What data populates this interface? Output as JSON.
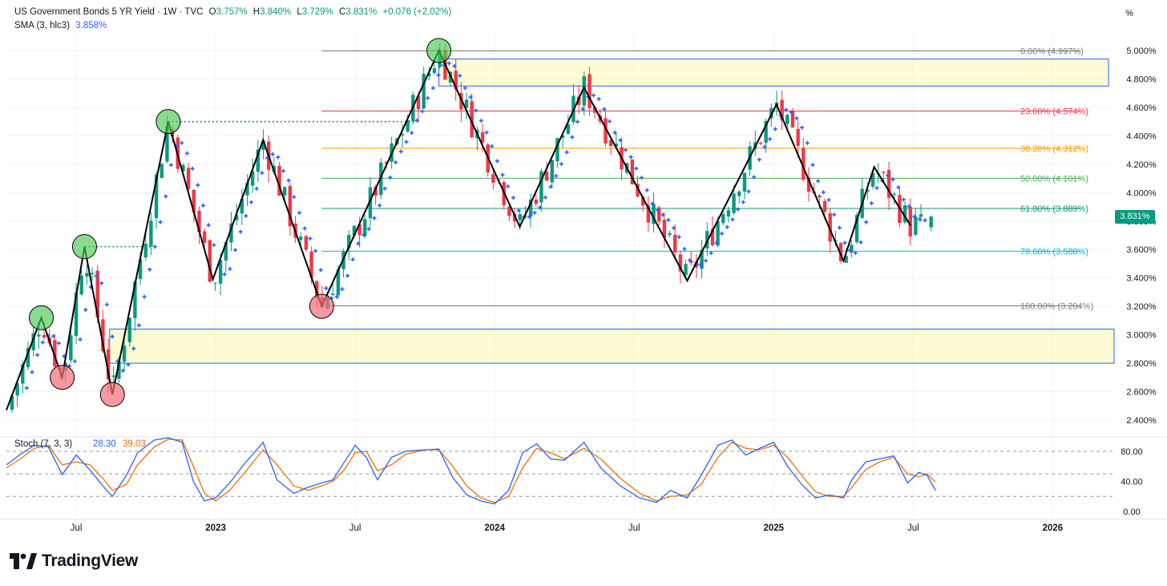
{
  "header": {
    "symbol": "US Government Bonds 5 YR Yield · 1W · TVC",
    "o_label": "O",
    "o_value": "3.757%",
    "h_label": "H",
    "h_value": "3.840%",
    "l_label": "L",
    "l_value": "3.729%",
    "c_label": "C",
    "c_value": "3.831%",
    "change": "+0.076 (+2.02%)",
    "sma_label": "SMA (3, hlc3)",
    "sma_value": "3.858%",
    "axis_unit": "%"
  },
  "last_price": "3.831%",
  "brand": "TradingView",
  "colors": {
    "up": "#089981",
    "down": "#f23645",
    "sma": "#2962ff",
    "stoch_k": "#2962ff",
    "stoch_d": "#ff6d00",
    "fib_label": "#131722"
  },
  "chart_data": {
    "type": "candlestick",
    "title": "US Government Bonds 5 YR Yield · 1W · TVC",
    "ylabel": "%",
    "ylim": [
      2.3,
      5.1
    ],
    "x_domain": [
      2022.25,
      2026.22
    ],
    "y_ticks": [
      "5.000%",
      "4.800%",
      "4.600%",
      "4.400%",
      "4.200%",
      "4.000%",
      "3.800%",
      "3.600%",
      "3.400%",
      "3.200%",
      "3.000%",
      "2.800%",
      "2.600%",
      "2.400%"
    ],
    "y_tick_values": [
      5.0,
      4.8,
      4.6,
      4.4,
      4.2,
      4.0,
      3.8,
      3.6,
      3.4,
      3.2,
      3.0,
      2.8,
      2.6,
      2.4
    ],
    "x_ticks": [
      "Jul",
      "2023",
      "Jul",
      "2024",
      "Jul",
      "2025",
      "Jul",
      "2026"
    ],
    "x_tick_values": [
      2022.5,
      2023.0,
      2023.5,
      2024.0,
      2024.5,
      2025.0,
      2025.5,
      2026.0
    ],
    "zigzag": [
      {
        "t": 2022.25,
        "v": 2.47
      },
      {
        "t": 2022.375,
        "v": 3.12
      },
      {
        "t": 2022.45,
        "v": 2.7
      },
      {
        "t": 2022.53,
        "v": 3.62
      },
      {
        "t": 2022.63,
        "v": 2.58
      },
      {
        "t": 2022.83,
        "v": 4.5
      },
      {
        "t": 2022.99,
        "v": 3.39
      },
      {
        "t": 2023.17,
        "v": 4.37
      },
      {
        "t": 2023.38,
        "v": 3.2
      },
      {
        "t": 2023.8,
        "v": 5.0
      },
      {
        "t": 2024.09,
        "v": 3.76
      },
      {
        "t": 2024.32,
        "v": 4.74
      },
      {
        "t": 2024.69,
        "v": 3.38
      },
      {
        "t": 2025.01,
        "v": 4.62
      },
      {
        "t": 2025.25,
        "v": 3.52
      },
      {
        "t": 2025.36,
        "v": 4.18
      },
      {
        "t": 2025.49,
        "v": 3.77
      }
    ],
    "pivot_highs": [
      {
        "t": 2022.375,
        "v": 3.12
      },
      {
        "t": 2022.53,
        "v": 3.62
      },
      {
        "t": 2022.83,
        "v": 4.5
      },
      {
        "t": 2023.8,
        "v": 5.0
      }
    ],
    "pivot_lows": [
      {
        "t": 2022.45,
        "v": 2.7
      },
      {
        "t": 2022.63,
        "v": 2.58
      },
      {
        "t": 2023.38,
        "v": 3.2
      }
    ],
    "dotted_levels": [
      {
        "t_start": 2022.53,
        "t_end": 2022.78,
        "v": 3.62
      },
      {
        "t_start": 2022.83,
        "t_end": 2023.73,
        "v": 4.5
      }
    ],
    "zones": [
      {
        "t_start": 2023.8,
        "t_end": 2026.2,
        "v_top": 4.94,
        "v_bottom": 4.75
      },
      {
        "t_start": 2022.62,
        "t_end": 2026.22,
        "v_top": 3.04,
        "v_bottom": 2.8
      }
    ],
    "fib_levels": [
      {
        "label": "0.00% (4.997%)",
        "v": 4.997,
        "color": "#787b86"
      },
      {
        "label": "23.60% (4.574%)",
        "v": 4.574,
        "color": "#f23645"
      },
      {
        "label": "38.20% (4.312%)",
        "v": 4.312,
        "color": "#ff9800"
      },
      {
        "label": "50.00% (4.101%)",
        "v": 4.101,
        "color": "#4caf50"
      },
      {
        "label": "61.80% (3.889%)",
        "v": 3.889,
        "color": "#089981"
      },
      {
        "label": "78.60% (3.588%)",
        "v": 3.588,
        "color": "#00bcd4"
      },
      {
        "label": "100.00% (3.204%)",
        "v": 3.204,
        "color": "#787b86"
      }
    ],
    "fib_t_start": 2023.38,
    "fib_t_end": 2026.1,
    "candles_last": {
      "open": 3.757,
      "high": 3.84,
      "low": 3.729,
      "close": 3.831
    },
    "stoch": {
      "label": "Stoch (7, 3, 3)",
      "k_value": "28.30",
      "d_value": "39.03",
      "ylim": [
        0,
        100
      ],
      "y_ticks": [
        "80.00",
        "40.00",
        "0.00"
      ],
      "y_tick_values": [
        80,
        40,
        0
      ],
      "bands": [
        80,
        50,
        20
      ],
      "k_points": [
        [
          2022.25,
          62
        ],
        [
          2022.3,
          76
        ],
        [
          2022.35,
          88
        ],
        [
          2022.4,
          86
        ],
        [
          2022.45,
          49
        ],
        [
          2022.5,
          75
        ],
        [
          2022.55,
          55
        ],
        [
          2022.6,
          32
        ],
        [
          2022.63,
          20
        ],
        [
          2022.68,
          48
        ],
        [
          2022.72,
          78
        ],
        [
          2022.78,
          95
        ],
        [
          2022.83,
          98
        ],
        [
          2022.88,
          92
        ],
        [
          2022.92,
          40
        ],
        [
          2022.96,
          14
        ],
        [
          2023.0,
          18
        ],
        [
          2023.05,
          38
        ],
        [
          2023.1,
          62
        ],
        [
          2023.17,
          92
        ],
        [
          2023.22,
          42
        ],
        [
          2023.28,
          24
        ],
        [
          2023.33,
          32
        ],
        [
          2023.38,
          38
        ],
        [
          2023.42,
          42
        ],
        [
          2023.46,
          65
        ],
        [
          2023.5,
          88
        ],
        [
          2023.54,
          72
        ],
        [
          2023.58,
          42
        ],
        [
          2023.63,
          72
        ],
        [
          2023.68,
          80
        ],
        [
          2023.75,
          82
        ],
        [
          2023.8,
          83
        ],
        [
          2023.85,
          45
        ],
        [
          2023.9,
          22
        ],
        [
          2023.95,
          14
        ],
        [
          2024.0,
          10
        ],
        [
          2024.05,
          28
        ],
        [
          2024.1,
          78
        ],
        [
          2024.15,
          90
        ],
        [
          2024.2,
          70
        ],
        [
          2024.25,
          68
        ],
        [
          2024.32,
          92
        ],
        [
          2024.38,
          58
        ],
        [
          2024.45,
          34
        ],
        [
          2024.52,
          18
        ],
        [
          2024.58,
          12
        ],
        [
          2024.63,
          28
        ],
        [
          2024.69,
          18
        ],
        [
          2024.74,
          48
        ],
        [
          2024.8,
          88
        ],
        [
          2024.85,
          95
        ],
        [
          2024.9,
          75
        ],
        [
          2024.95,
          84
        ],
        [
          2025.0,
          92
        ],
        [
          2025.05,
          60
        ],
        [
          2025.1,
          36
        ],
        [
          2025.15,
          18
        ],
        [
          2025.2,
          22
        ],
        [
          2025.25,
          18
        ],
        [
          2025.28,
          42
        ],
        [
          2025.33,
          66
        ],
        [
          2025.38,
          70
        ],
        [
          2025.43,
          74
        ],
        [
          2025.48,
          38
        ],
        [
          2025.52,
          52
        ],
        [
          2025.55,
          48
        ],
        [
          2025.58,
          28
        ]
      ],
      "d_points": [
        [
          2022.25,
          58
        ],
        [
          2022.3,
          70
        ],
        [
          2022.35,
          84
        ],
        [
          2022.4,
          88
        ],
        [
          2022.45,
          62
        ],
        [
          2022.5,
          66
        ],
        [
          2022.55,
          62
        ],
        [
          2022.6,
          42
        ],
        [
          2022.63,
          28
        ],
        [
          2022.68,
          36
        ],
        [
          2022.72,
          62
        ],
        [
          2022.78,
          86
        ],
        [
          2022.83,
          96
        ],
        [
          2022.88,
          95
        ],
        [
          2022.92,
          60
        ],
        [
          2022.96,
          24
        ],
        [
          2023.0,
          14
        ],
        [
          2023.05,
          28
        ],
        [
          2023.1,
          50
        ],
        [
          2023.17,
          82
        ],
        [
          2023.22,
          62
        ],
        [
          2023.28,
          34
        ],
        [
          2023.33,
          28
        ],
        [
          2023.38,
          34
        ],
        [
          2023.42,
          40
        ],
        [
          2023.46,
          55
        ],
        [
          2023.5,
          78
        ],
        [
          2023.54,
          80
        ],
        [
          2023.58,
          54
        ],
        [
          2023.63,
          62
        ],
        [
          2023.68,
          76
        ],
        [
          2023.75,
          82
        ],
        [
          2023.8,
          82
        ],
        [
          2023.85,
          60
        ],
        [
          2023.9,
          34
        ],
        [
          2023.95,
          18
        ],
        [
          2024.0,
          12
        ],
        [
          2024.05,
          20
        ],
        [
          2024.1,
          58
        ],
        [
          2024.15,
          84
        ],
        [
          2024.2,
          78
        ],
        [
          2024.25,
          70
        ],
        [
          2024.32,
          84
        ],
        [
          2024.38,
          70
        ],
        [
          2024.45,
          44
        ],
        [
          2024.52,
          24
        ],
        [
          2024.58,
          14
        ],
        [
          2024.63,
          20
        ],
        [
          2024.69,
          22
        ],
        [
          2024.74,
          36
        ],
        [
          2024.8,
          72
        ],
        [
          2024.85,
          92
        ],
        [
          2024.9,
          84
        ],
        [
          2024.95,
          82
        ],
        [
          2025.0,
          88
        ],
        [
          2025.05,
          72
        ],
        [
          2025.1,
          48
        ],
        [
          2025.15,
          26
        ],
        [
          2025.2,
          20
        ],
        [
          2025.25,
          20
        ],
        [
          2025.28,
          32
        ],
        [
          2025.33,
          56
        ],
        [
          2025.38,
          66
        ],
        [
          2025.43,
          72
        ],
        [
          2025.48,
          50
        ],
        [
          2025.52,
          46
        ],
        [
          2025.55,
          50
        ],
        [
          2025.58,
          39
        ]
      ]
    }
  }
}
